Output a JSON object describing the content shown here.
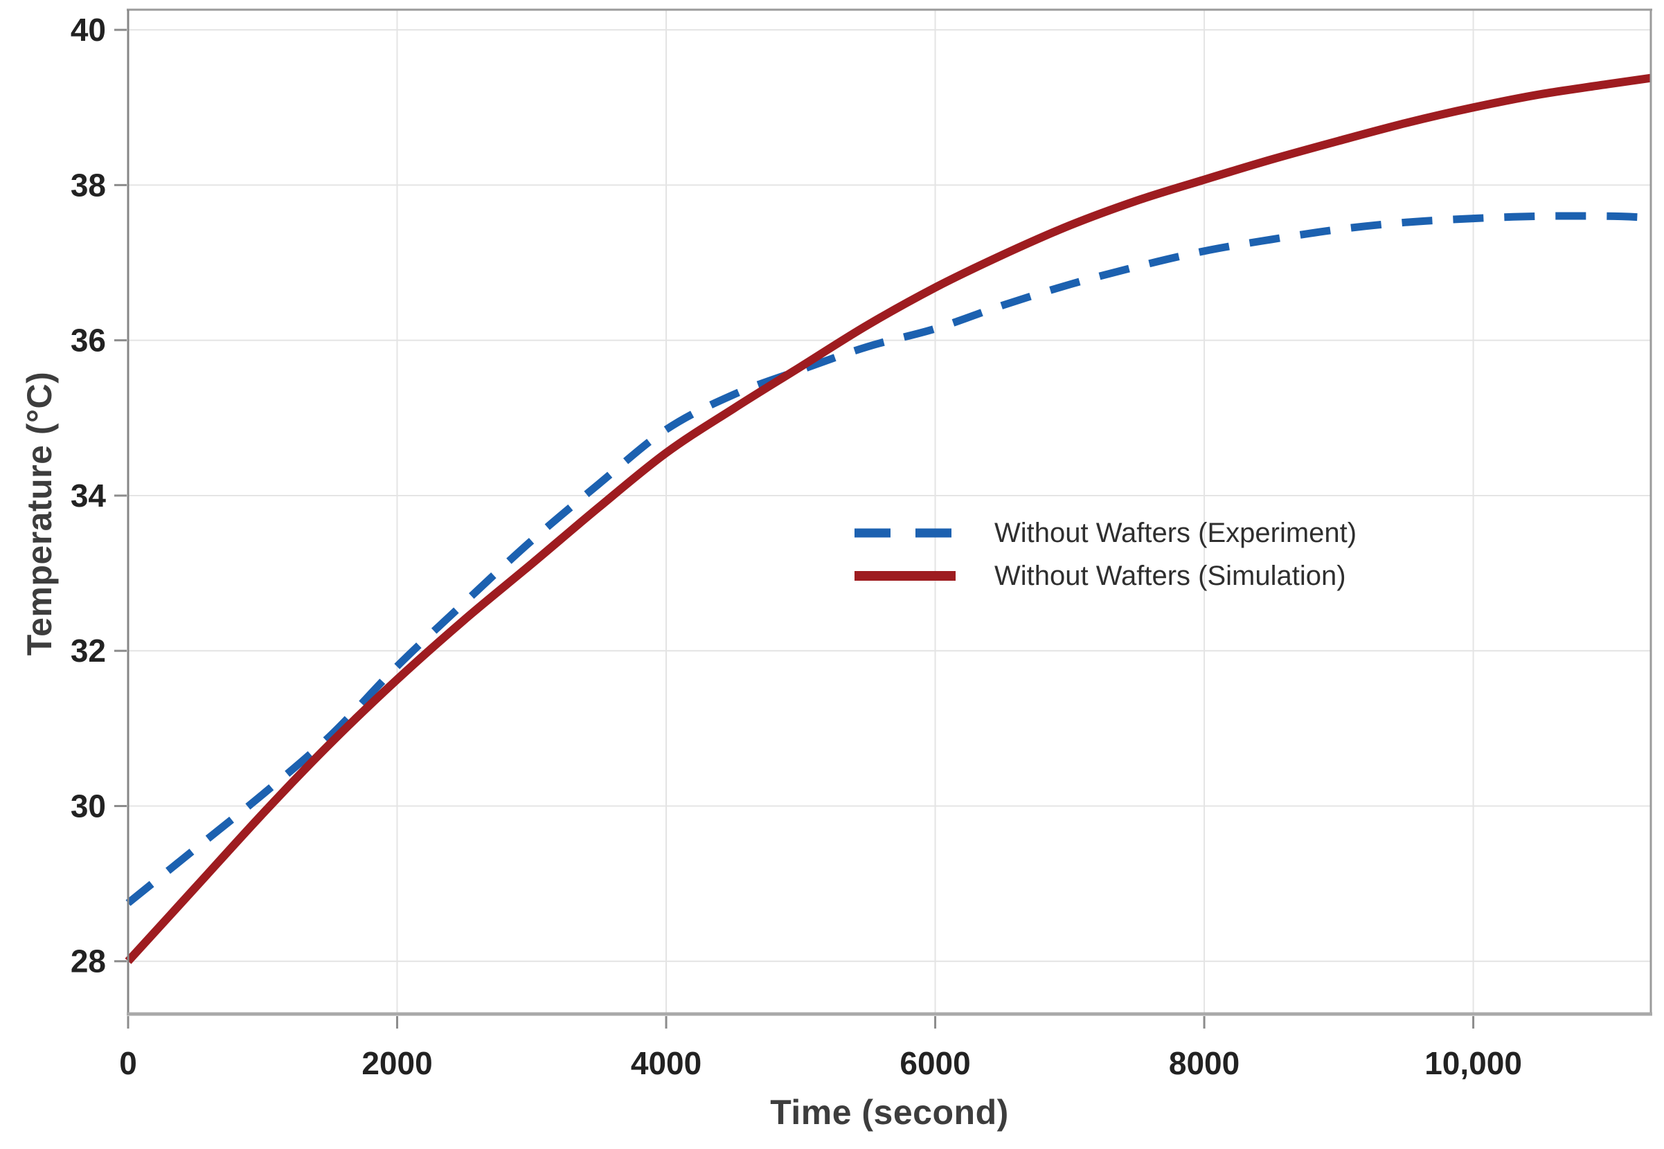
{
  "chart_data": {
    "type": "line",
    "title": "",
    "xlabel": "Time (second)",
    "ylabel": "Temperature (°C)",
    "xlim": [
      0,
      11320
    ],
    "ylim": [
      27.32,
      40.26
    ],
    "grid": true,
    "legend_position": "center-right",
    "x_ticks": {
      "values": [
        0,
        2000,
        4000,
        6000,
        8000,
        10000
      ],
      "labels": [
        "0",
        "2000",
        "4000",
        "6000",
        "8000",
        "10,000"
      ]
    },
    "y_ticks": {
      "values": [
        28,
        30,
        32,
        34,
        36,
        38,
        40
      ],
      "labels": [
        "28",
        "30",
        "32",
        "34",
        "36",
        "38",
        "40"
      ]
    },
    "series": [
      {
        "name": "Without Wafters (Experiment)",
        "style": "dashed",
        "color": "#1c61b0",
        "points": [
          [
            0,
            28.75
          ],
          [
            500,
            29.45
          ],
          [
            1000,
            30.15
          ],
          [
            1500,
            30.9
          ],
          [
            2000,
            31.8
          ],
          [
            2500,
            32.62
          ],
          [
            3000,
            33.42
          ],
          [
            3500,
            34.15
          ],
          [
            4000,
            34.85
          ],
          [
            4500,
            35.3
          ],
          [
            5000,
            35.62
          ],
          [
            5500,
            35.92
          ],
          [
            6000,
            36.15
          ],
          [
            6500,
            36.45
          ],
          [
            7000,
            36.72
          ],
          [
            7500,
            36.95
          ],
          [
            8000,
            37.15
          ],
          [
            8500,
            37.3
          ],
          [
            9000,
            37.43
          ],
          [
            9500,
            37.52
          ],
          [
            10000,
            37.57
          ],
          [
            10500,
            37.6
          ],
          [
            11000,
            37.6
          ],
          [
            11320,
            37.58
          ]
        ]
      },
      {
        "name": "Without Wafters (Simulation)",
        "style": "solid",
        "color": "#9e1c20",
        "points": [
          [
            0,
            28.0
          ],
          [
            500,
            28.95
          ],
          [
            1000,
            29.9
          ],
          [
            1500,
            30.8
          ],
          [
            2000,
            31.63
          ],
          [
            2500,
            32.4
          ],
          [
            3000,
            33.12
          ],
          [
            3500,
            33.85
          ],
          [
            4000,
            34.55
          ],
          [
            4500,
            35.12
          ],
          [
            5000,
            35.66
          ],
          [
            5500,
            36.2
          ],
          [
            6000,
            36.68
          ],
          [
            6500,
            37.1
          ],
          [
            7000,
            37.48
          ],
          [
            7500,
            37.8
          ],
          [
            8000,
            38.07
          ],
          [
            8500,
            38.33
          ],
          [
            9000,
            38.57
          ],
          [
            9500,
            38.8
          ],
          [
            10000,
            39.0
          ],
          [
            10500,
            39.17
          ],
          [
            11000,
            39.3
          ],
          [
            11320,
            39.38
          ]
        ]
      }
    ],
    "colors": {
      "gridline": "#e4e4e4",
      "border": "#9b9b9b",
      "axis_left": "#878787",
      "axis_bottom": "#a9a9a9",
      "tick_mark": "#8c8c8c",
      "tick_label": "#222222",
      "axis_title": "#3d3d3d"
    }
  }
}
